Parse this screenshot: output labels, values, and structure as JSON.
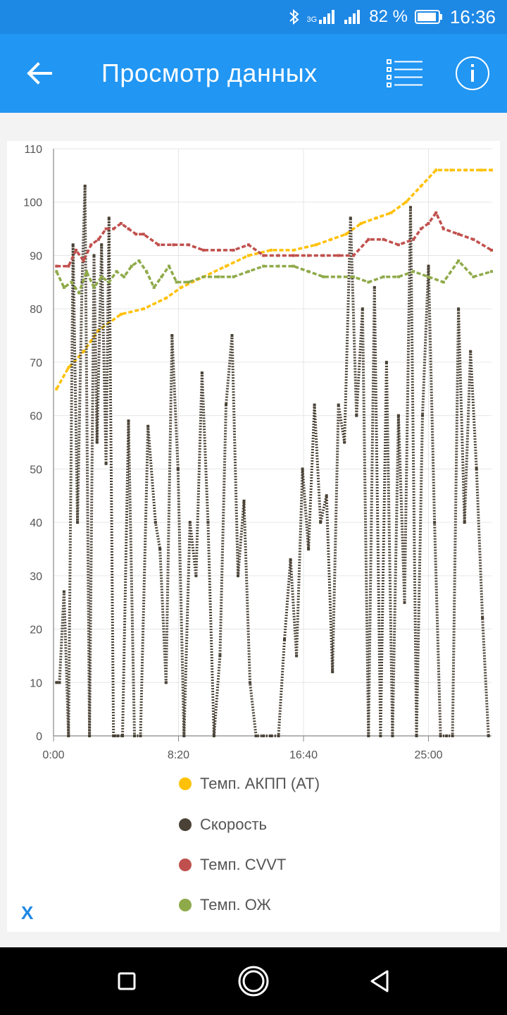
{
  "status_bar": {
    "battery_percent": "82 %",
    "time": "16:36",
    "network_label": "3G",
    "icons": [
      "bluetooth-icon",
      "signal-icon",
      "signal-icon",
      "battery-icon"
    ]
  },
  "app_bar": {
    "title": "Просмотр данных",
    "back_icon": "arrow-left-icon",
    "list_icon": "list-icon",
    "info_icon": "info-icon",
    "color": "#2196f3"
  },
  "chart_data": {
    "type": "line",
    "x_ticks": [
      "0:00",
      "8:20",
      "16:40",
      "25:00"
    ],
    "x_tick_minutes": [
      0,
      8.333,
      16.667,
      25
    ],
    "xlim_minutes": [
      0,
      29.2
    ],
    "ylim": [
      0,
      110
    ],
    "y_ticks": [
      0,
      10,
      20,
      30,
      40,
      50,
      60,
      70,
      80,
      90,
      100,
      110
    ],
    "grid": true,
    "legend_position": "bottom",
    "series": [
      {
        "name": "Темп. АКПП (AT)",
        "color": "#ffc107",
        "x": [
          0.2,
          1.0,
          2.0,
          3.0,
          4.5,
          6.0,
          7.5,
          8.5,
          10.0,
          11.5,
          13.0,
          14.5,
          16.0,
          17.5,
          18.5,
          19.5,
          20.5,
          21.5,
          22.5,
          23.5,
          24.5,
          25.5,
          26.5,
          27.5,
          28.5,
          29.2
        ],
        "values": [
          65,
          69,
          72,
          76,
          79,
          80,
          82,
          84,
          86,
          88,
          90,
          91,
          91,
          92,
          93,
          94,
          96,
          97,
          98,
          100,
          103,
          106,
          106,
          106,
          106,
          106
        ]
      },
      {
        "name": "Скорость",
        "color": "#4a4236",
        "x": [
          0.2,
          0.4,
          0.7,
          1.0,
          1.3,
          1.6,
          1.9,
          2.1,
          2.4,
          2.7,
          2.9,
          3.2,
          3.5,
          3.7,
          4.0,
          4.3,
          4.6,
          5.0,
          5.4,
          5.8,
          6.3,
          6.8,
          7.1,
          7.5,
          7.9,
          8.3,
          8.7,
          9.1,
          9.5,
          9.9,
          10.3,
          10.7,
          11.1,
          11.5,
          11.9,
          12.3,
          12.7,
          13.1,
          13.5,
          14.0,
          14.5,
          15.0,
          15.4,
          15.8,
          16.2,
          16.6,
          17.0,
          17.4,
          17.8,
          18.2,
          18.6,
          19.0,
          19.4,
          19.8,
          20.2,
          20.6,
          21.0,
          21.4,
          21.8,
          22.2,
          22.6,
          23.0,
          23.4,
          23.8,
          24.2,
          24.6,
          25.0,
          25.4,
          25.8,
          26.2,
          26.6,
          27.0,
          27.4,
          27.8,
          28.2,
          28.6,
          29.0
        ],
        "values": [
          10,
          10,
          27,
          0,
          92,
          40,
          85,
          103,
          0,
          90,
          55,
          92,
          51,
          97,
          0,
          0,
          0,
          59,
          0,
          0,
          58,
          40,
          35,
          10,
          75,
          50,
          0,
          40,
          30,
          68,
          40,
          0,
          15,
          62,
          75,
          30,
          44,
          10,
          0,
          0,
          0,
          0,
          18,
          33,
          15,
          50,
          35,
          62,
          40,
          45,
          12,
          62,
          55,
          97,
          60,
          80,
          0,
          84,
          0,
          70,
          0,
          60,
          25,
          99,
          0,
          60,
          88,
          40,
          0,
          0,
          0,
          80,
          40,
          72,
          50,
          22,
          0
        ]
      },
      {
        "name": "Темп. CVVT",
        "color": "#c0504d",
        "x": [
          0.2,
          1.0,
          1.5,
          2.0,
          2.5,
          3.0,
          3.5,
          4.0,
          4.5,
          5.0,
          5.5,
          6.0,
          7.0,
          8.0,
          9.0,
          10.0,
          11.0,
          12.0,
          13.0,
          14.0,
          15.0,
          16.0,
          17.0,
          18.0,
          19.0,
          20.0,
          21.0,
          22.0,
          23.0,
          24.0,
          24.5,
          25.0,
          25.5,
          26.0,
          27.0,
          28.0,
          29.2
        ],
        "values": [
          88,
          88,
          91,
          89,
          92,
          93,
          95,
          95,
          96,
          95,
          94,
          94,
          92,
          92,
          92,
          91,
          91,
          91,
          92,
          90,
          90,
          90,
          90,
          90,
          90,
          90,
          93,
          93,
          92,
          93,
          95,
          96,
          98,
          95,
          94,
          93,
          91
        ]
      },
      {
        "name": "Темп. ОЖ",
        "color": "#8faa4a",
        "x": [
          0.2,
          0.7,
          1.2,
          1.7,
          2.2,
          2.7,
          3.2,
          3.7,
          4.2,
          4.7,
          5.2,
          5.7,
          6.2,
          6.7,
          7.2,
          7.7,
          8.2,
          9.0,
          10.0,
          11.0,
          12.0,
          13.0,
          14.0,
          15.0,
          16.0,
          17.0,
          18.0,
          19.0,
          20.0,
          21.0,
          22.0,
          23.0,
          24.0,
          25.0,
          26.0,
          27.0,
          28.0,
          29.2
        ],
        "values": [
          87,
          84,
          85,
          83,
          87,
          84,
          86,
          85,
          87,
          86,
          88,
          89,
          87,
          84,
          86,
          88,
          85,
          85,
          86,
          86,
          86,
          87,
          88,
          88,
          88,
          87,
          86,
          86,
          86,
          85,
          86,
          86,
          87,
          86,
          85,
          89,
          86,
          87
        ]
      }
    ]
  },
  "close_button": {
    "label": "X"
  },
  "nav_bar": {
    "icons": [
      "square-recents-icon",
      "circle-home-icon",
      "triangle-back-icon"
    ]
  }
}
